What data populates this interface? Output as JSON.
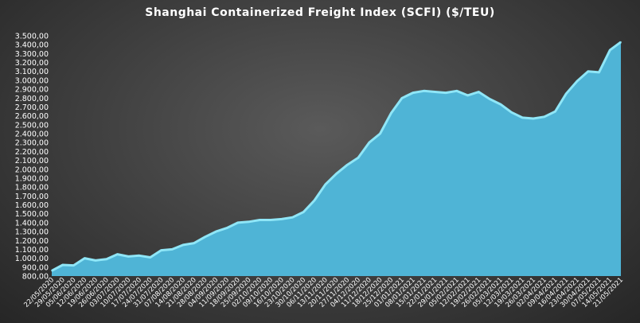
{
  "chart_data": {
    "type": "area",
    "title": "Shanghai Containerized Freight Index  (SCFI) ($/TEU)",
    "xlabel": "",
    "ylabel": "",
    "ylim": [
      800,
      3500
    ],
    "ytick_labels": [
      "800,00",
      "900,00",
      "1.000,00",
      "1.100,00",
      "1.200,00",
      "1.300,00",
      "1.400,00",
      "1.500,00",
      "1.600,00",
      "1.700,00",
      "1.800,00",
      "1.900,00",
      "2.000,00",
      "2.100,00",
      "2.200,00",
      "2.300,00",
      "2.400,00",
      "2.500,00",
      "2.600,00",
      "2.700,00",
      "2.800,00",
      "2.900,00",
      "3.000,00",
      "3.100,00",
      "3.200,00",
      "3.300,00",
      "3.400,00",
      "3.500,00"
    ],
    "x": [
      "22/05/2020",
      "29/05/2020",
      "05/06/2020",
      "12/06/2020",
      "19/06/2020",
      "26/06/2020",
      "03/07/2020",
      "10/07/2020",
      "17/07/2020",
      "24/07/2020",
      "31/07/2020",
      "07/08/2020",
      "14/08/2020",
      "21/08/2020",
      "28/08/2020",
      "04/09/2020",
      "11/09/2020",
      "18/09/2020",
      "25/09/2020",
      "02/10/2020",
      "09/10/2020",
      "16/10/2020",
      "23/10/2020",
      "30/10/2020",
      "06/11/2020",
      "13/11/2020",
      "20/11/2020",
      "27/11/2020",
      "04/12/2020",
      "11/12/2020",
      "18/12/2020",
      "25/12/2020",
      "01/01/2021",
      "08/01/2021",
      "15/01/2021",
      "22/01/2021",
      "29/01/2021",
      "05/02/2021",
      "12/02/2021",
      "19/02/2021",
      "26/02/2021",
      "05/03/2021",
      "12/03/2021",
      "19/03/2021",
      "26/03/2021",
      "02/04/2021",
      "09/04/2021",
      "16/04/2021",
      "23/04/2021",
      "30/04/2021",
      "07/05/2021",
      "14/05/2021",
      "21/05/2021"
    ],
    "x_tick_labels": [
      "22/05/2020",
      "29/05/2020",
      "05/06/2020",
      "12/06/2020",
      "19/06/2020",
      "26/06/2020",
      "03/07/2020",
      "10/07/2020",
      "17/07/2020",
      "24/07/2020",
      "31/07/2020",
      "07/08/2020",
      "14/08/2020",
      "21/08/2020",
      "28/08/2020",
      "04/09/2020",
      "11/09/2020",
      "18/09/2020",
      "25/09/2020",
      "02/10/2020",
      "09/10/2020",
      "16/10/2020",
      "23/10/2020",
      "30/10/2020",
      "06/11/2020",
      "13/11/2020",
      "20/11/2020",
      "27/11/2020",
      "04/12/2020",
      "11/12/2020",
      "18/12/2020",
      "25/12/2020",
      "01/01/2021",
      "08/01/2021",
      "15/01/2021",
      "22/01/2021",
      "29/01/2021",
      "05/02/2021",
      "12/02/2021",
      "19/02/2021",
      "26/02/2021",
      "05/03/2021",
      "12/03/2021",
      "19/03/2021",
      "26/03/2021",
      "02/04/2021",
      "09/04/2021",
      "16/04/2021",
      "23/04/2021",
      "30/04/2021",
      "07/05/2021",
      "14/05/2021",
      "21/05/2021"
    ],
    "series": [
      {
        "values": [
          860,
          925,
          920,
          1000,
          975,
          990,
          1045,
          1020,
          1030,
          1010,
          1090,
          1100,
          1150,
          1170,
          1240,
          1300,
          1340,
          1400,
          1410,
          1430,
          1430,
          1440,
          1460,
          1520,
          1650,
          1830,
          1950,
          2050,
          2130,
          2300,
          2400,
          2630,
          2800,
          2860,
          2880,
          2870,
          2860,
          2880,
          2830,
          2870,
          2790,
          2730,
          2640,
          2580,
          2570,
          2590,
          2650,
          2850,
          2990,
          3100,
          3090,
          3340,
          3430
        ],
        "color": "#4fb4d6",
        "outline_color": "#8fe6f7"
      }
    ],
    "grid": false,
    "legend": "none",
    "background_color": "#3f3f3f"
  }
}
